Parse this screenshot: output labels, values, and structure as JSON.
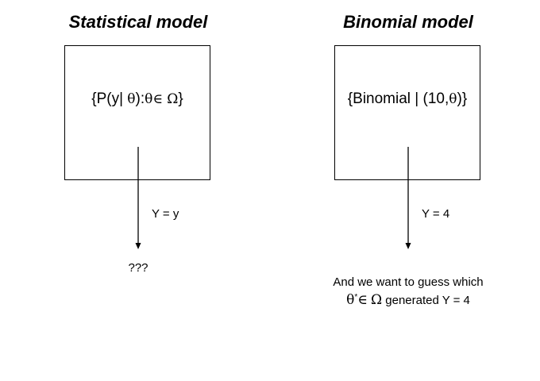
{
  "left_panel": {
    "title": "Statistical model",
    "box": {
      "open": "{P(y| ",
      "theta": "θ",
      "colon": "):",
      "theta2": "θ",
      "in": "∈",
      "omega": "Ω",
      "close": "}"
    },
    "edge_label": "Y = y",
    "result": "???"
  },
  "right_panel": {
    "title": "Binomial model",
    "box": {
      "open": "{Binomial | (10,",
      "theta": "θ",
      "close": ")}"
    },
    "edge_label": "Y = 4",
    "result": {
      "line1": "And we want to guess which",
      "theta": "θ",
      "star": "*",
      "in": "∈",
      "omega": "Ω",
      "rest": " generated Y = 4"
    }
  }
}
